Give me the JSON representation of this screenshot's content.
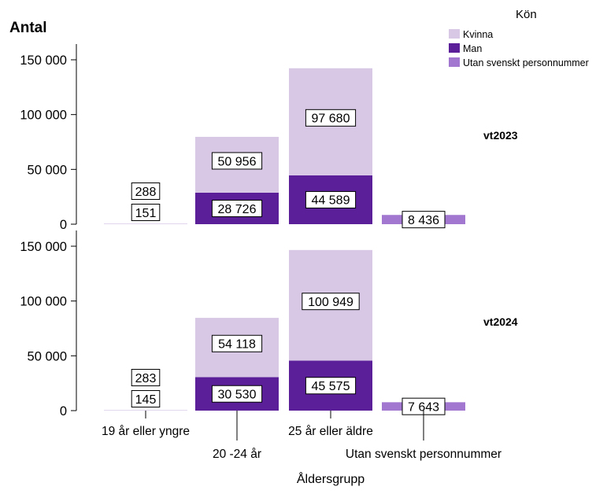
{
  "chart_data": {
    "type": "bar",
    "stacked": true,
    "title": "",
    "ylabel": "Antal",
    "xlabel": "Åldersgrupp",
    "legend_title": "Kön",
    "legend_position": "top-right",
    "categories": [
      "19 år eller yngre",
      "20 -24 år",
      "25 år eller äldre",
      "Utan svenskt personnummer"
    ],
    "ylim": [
      0,
      150000
    ],
    "yticks": [
      {
        "value": 0,
        "label": "0"
      },
      {
        "value": 50000,
        "label": "50 000"
      },
      {
        "value": 100000,
        "label": "100 000"
      },
      {
        "value": 150000,
        "label": "150 000"
      }
    ],
    "series": [
      {
        "name": "Kvinna",
        "color": "#d8c8e6"
      },
      {
        "name": "Man",
        "color": "#5c1f9a"
      },
      {
        "name": "Utan svenskt personnummer",
        "color": "#a177cf"
      }
    ],
    "panels": [
      {
        "label": "vt2023",
        "bars": [
          {
            "category": "19 år eller yngre",
            "segments": [
              {
                "series": "Man",
                "value": 151,
                "label": "151"
              },
              {
                "series": "Kvinna",
                "value": 288,
                "label": "288"
              }
            ]
          },
          {
            "category": "20 -24 år",
            "segments": [
              {
                "series": "Man",
                "value": 28726,
                "label": "28 726"
              },
              {
                "series": "Kvinna",
                "value": 50956,
                "label": "50 956"
              }
            ]
          },
          {
            "category": "25 år eller äldre",
            "segments": [
              {
                "series": "Man",
                "value": 44589,
                "label": "44 589"
              },
              {
                "series": "Kvinna",
                "value": 97680,
                "label": "97 680"
              }
            ]
          },
          {
            "category": "Utan svenskt personnummer",
            "segments": [
              {
                "series": "Utan svenskt personnummer",
                "value": 8436,
                "label": "8 436"
              }
            ]
          }
        ]
      },
      {
        "label": "vt2024",
        "bars": [
          {
            "category": "19 år eller yngre",
            "segments": [
              {
                "series": "Man",
                "value": 145,
                "label": "145"
              },
              {
                "series": "Kvinna",
                "value": 283,
                "label": "283"
              }
            ]
          },
          {
            "category": "20 -24 år",
            "segments": [
              {
                "series": "Man",
                "value": 30530,
                "label": "30 530"
              },
              {
                "series": "Kvinna",
                "value": 54118,
                "label": "54 118"
              }
            ]
          },
          {
            "category": "25 år eller äldre",
            "segments": [
              {
                "series": "Man",
                "value": 45575,
                "label": "45 575"
              },
              {
                "series": "Kvinna",
                "value": 100949,
                "label": "100 949"
              }
            ]
          },
          {
            "category": "Utan svenskt personnummer",
            "segments": [
              {
                "series": "Utan svenskt personnummer",
                "value": 7643,
                "label": "7 643"
              }
            ]
          }
        ]
      }
    ]
  }
}
